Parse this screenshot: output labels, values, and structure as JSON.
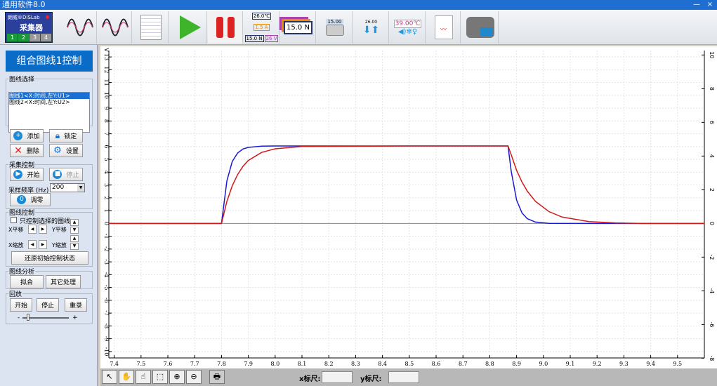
{
  "window": {
    "title": "通用软件8.0",
    "minimize": "—",
    "close": "×"
  },
  "toolbar": {
    "device": {
      "brand": "朗威®DISLab",
      "name": "采集器",
      "channels": [
        "1",
        "2",
        "3",
        "4"
      ]
    },
    "icons": [
      "waveform-icon",
      "dual-waveform-icon",
      "table-icon",
      "play-icon",
      "pause-icon",
      "meter-display-icon",
      "large-meter-icon",
      "camera-icon",
      "transfer-icon",
      "sensor-readout-icon",
      "report-icon",
      "video-camera-icon"
    ],
    "meter_texts": [
      "26.0℃",
      "1.5 A",
      "15.0 N",
      "26 V"
    ],
    "big_meter": "15.0 N",
    "camera_value": "15.00",
    "transfer_value": "26.00",
    "sensor_value": "39.00℃"
  },
  "panel": {
    "title": "组合图线1控制",
    "curve_select": {
      "legend": "图线选择",
      "items": [
        "图线1<X:时间,左Y:U1>",
        "图线2<X:时间,左Y:U2>"
      ],
      "selected": 0
    },
    "buttons": {
      "add": "添加",
      "lock": "锁定",
      "delete": "删除",
      "settings": "设置"
    },
    "acquire": {
      "legend": "采集控制",
      "start": "开始",
      "stop": "停止",
      "rate_label": "采样频率 (Hz)",
      "rate_value": "200",
      "zero": "调零"
    },
    "curve_control": {
      "legend": "图线控制",
      "only_selected": "只控制选择的图线",
      "x_pan": "X平移",
      "y_pan": "Y平移",
      "x_zoom": "X缩放",
      "y_zoom": "Y缩放",
      "reset": "还原初始控制状态"
    },
    "analysis": {
      "legend": "图线分析",
      "fit": "拟合",
      "other": "其它处理"
    },
    "playback": {
      "legend": "回放",
      "start": "开始",
      "stop": "停止",
      "record": "重录",
      "minus": "-",
      "plus": "+",
      "slider_value": 0.1
    }
  },
  "bottom": {
    "x_ruler": "x标尺:",
    "y_ruler": "y标尺:",
    "x_ruler_value": "",
    "y_ruler_value": ""
  },
  "chart_data": {
    "type": "line",
    "grid": true,
    "unit_label": "V",
    "xlim": [
      7.38,
      9.6
    ],
    "ylim": [
      -10.5,
      13.5
    ],
    "xticks": [
      "7.4",
      "7.5",
      "7.6",
      "7.7",
      "7.8",
      "7.9",
      "8.0",
      "8.1",
      "8.2",
      "8.3",
      "8.4",
      "8.5",
      "8.6",
      "8.7",
      "8.8",
      "8.9",
      "9.0",
      "9.1",
      "9.2",
      "9.3",
      "9.4",
      "9.5"
    ],
    "yticks": [
      13,
      12,
      11,
      10,
      9,
      8,
      7,
      6,
      5,
      4,
      3,
      2,
      1,
      0,
      -1,
      -2,
      -3,
      -4,
      -5,
      -6,
      -7,
      -8,
      -9,
      -10
    ],
    "right_yticks": [
      10,
      8,
      6,
      4,
      2,
      0,
      -2,
      -4,
      -6,
      -8
    ],
    "series": [
      {
        "color": "#1a1ad0",
        "points": [
          [
            7.38,
            0
          ],
          [
            7.8,
            0
          ],
          [
            7.82,
            3.33
          ],
          [
            7.84,
            4.83
          ],
          [
            7.86,
            5.5
          ],
          [
            7.88,
            5.81
          ],
          [
            7.9,
            5.94
          ],
          [
            7.95,
            6.03
          ],
          [
            8.0,
            6.05
          ],
          [
            8.5,
            6.05
          ],
          [
            8.868,
            6.05
          ],
          [
            8.88,
            4.06
          ],
          [
            8.9,
            1.83
          ],
          [
            8.92,
            0.82
          ],
          [
            8.94,
            0.37
          ],
          [
            8.97,
            0.11
          ],
          [
            9.02,
            0.01
          ],
          [
            9.2,
            0
          ],
          [
            9.6,
            0
          ]
        ]
      },
      {
        "color": "#d01a1a",
        "points": [
          [
            7.38,
            0
          ],
          [
            7.8,
            0
          ],
          [
            7.82,
            1.72
          ],
          [
            7.84,
            2.94
          ],
          [
            7.86,
            3.82
          ],
          [
            7.88,
            4.46
          ],
          [
            7.9,
            4.92
          ],
          [
            7.95,
            5.55
          ],
          [
            8.0,
            5.83
          ],
          [
            8.1,
            6.01
          ],
          [
            8.5,
            6.05
          ],
          [
            8.868,
            6.05
          ],
          [
            8.88,
            5.36
          ],
          [
            8.9,
            4.15
          ],
          [
            8.92,
            3.23
          ],
          [
            8.94,
            2.52
          ],
          [
            8.97,
            1.73
          ],
          [
            9.02,
            0.93
          ],
          [
            9.07,
            0.5
          ],
          [
            9.17,
            0.14
          ],
          [
            9.27,
            0.04
          ],
          [
            9.37,
            0
          ],
          [
            9.6,
            0
          ]
        ]
      }
    ]
  }
}
